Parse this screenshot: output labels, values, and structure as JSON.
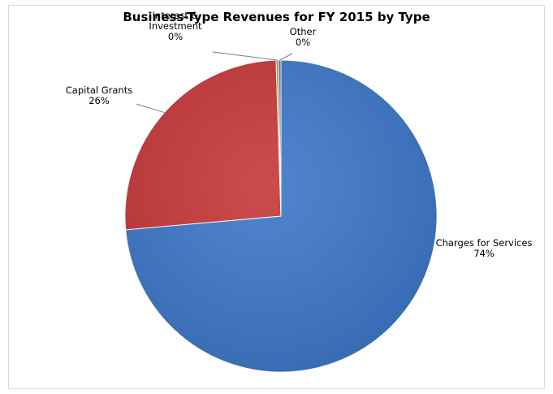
{
  "chart_data": {
    "type": "pie",
    "title": "Business-Type Revenues for FY 2015 by Type",
    "slices": [
      {
        "label": "Charges for Services",
        "percent_label": "74%",
        "value": 73.6,
        "color": "#3d78c9"
      },
      {
        "label": "Capital Grants",
        "percent_label": "26%",
        "value": 25.9,
        "color": "#c7383a"
      },
      {
        "label": "Interest & Investment",
        "percent_label": "0%",
        "value": 0.25,
        "color": "#8db33a"
      },
      {
        "label": "Other",
        "percent_label": "0%",
        "value": 0.25,
        "color": "#7a5aa8"
      }
    ],
    "legend": "none"
  }
}
